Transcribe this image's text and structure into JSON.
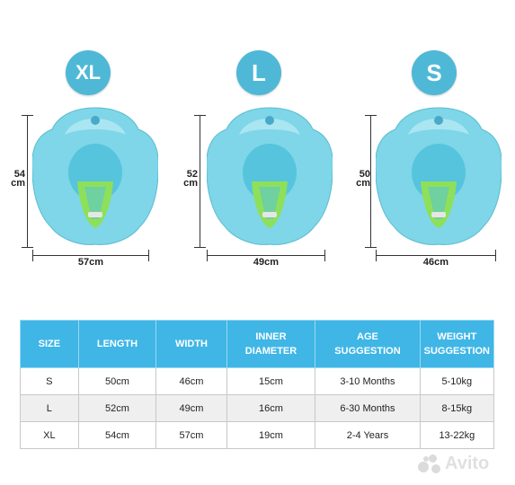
{
  "badges": {
    "xl": "XL",
    "l": "L",
    "s": "S"
  },
  "products": [
    {
      "size": "XL",
      "height": "54",
      "height_unit": "cm",
      "width": "57cm"
    },
    {
      "size": "L",
      "height": "52",
      "height_unit": "cm",
      "width": "49cm"
    },
    {
      "size": "S",
      "height": "50",
      "height_unit": "cm",
      "width": "46cm"
    }
  ],
  "table": {
    "headers": [
      "SIZE",
      "LENGTH",
      "WIDTH",
      "INNER\nDIAMETER",
      "AGE\nSUGGESTION",
      "WEIGHT\nSUGGESTION"
    ],
    "rows": [
      [
        "S",
        "50cm",
        "46cm",
        "15cm",
        "3-10 Months",
        "5-10kg"
      ],
      [
        "L",
        "52cm",
        "49cm",
        "16cm",
        "6-30 Months",
        "8-15kg"
      ],
      [
        "XL",
        "54cm",
        "57cm",
        "19cm",
        "2-4 Years",
        "13-22kg"
      ]
    ]
  },
  "colors": {
    "badge": "#4fb8d6",
    "header": "#3fb6e6",
    "float_body": "#7ed6e8",
    "seat": "#8ee05a"
  },
  "watermark": {
    "text": "Avito",
    "icon": "avito-logo-icon"
  }
}
